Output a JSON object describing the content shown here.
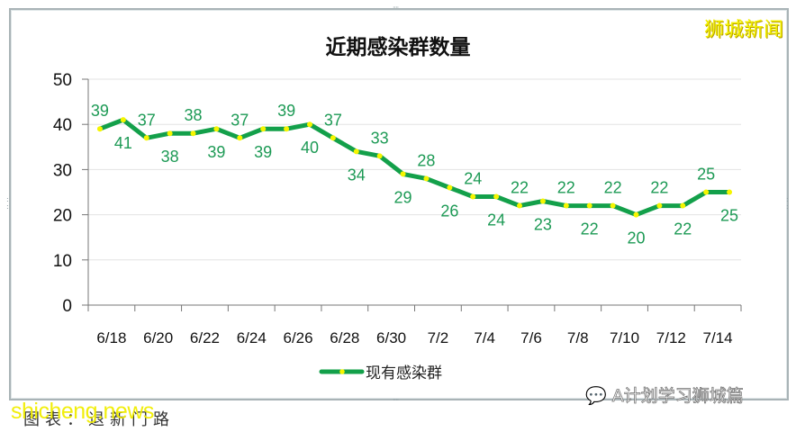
{
  "chart_data": {
    "type": "line",
    "title": "近期感染群数量",
    "xlabel": "",
    "ylabel": "",
    "ylim": [
      0,
      50
    ],
    "yticks": [
      0,
      10,
      20,
      30,
      40,
      50
    ],
    "grid": true,
    "legend_position": "bottom",
    "x": [
      "6/18",
      "6/19",
      "6/20",
      "6/21",
      "6/22",
      "6/23",
      "6/24",
      "6/25",
      "6/26",
      "6/27",
      "6/28",
      "6/29",
      "6/30",
      "7/1",
      "7/2",
      "7/3",
      "7/4",
      "7/5",
      "7/6",
      "7/7",
      "7/8",
      "7/9",
      "7/10",
      "7/11",
      "7/12",
      "7/13",
      "7/14",
      "7/15"
    ],
    "xtick_labels": [
      "6/18",
      "6/20",
      "6/22",
      "6/24",
      "6/26",
      "6/28",
      "6/30",
      "7/2",
      "7/4",
      "7/6",
      "7/8",
      "7/10",
      "7/12",
      "7/14"
    ],
    "series": [
      {
        "name": "现有感染群",
        "color": "#13a04a",
        "marker_color": "#f5f500",
        "values": [
          39,
          41,
          37,
          38,
          38,
          39,
          37,
          39,
          39,
          40,
          37,
          34,
          33,
          29,
          28,
          26,
          24,
          24,
          22,
          23,
          22,
          22,
          22,
          20,
          22,
          22,
          25,
          25
        ]
      }
    ]
  },
  "header": {
    "title": "近期感染群数量"
  },
  "legend": {
    "label": "现有感染群"
  },
  "brand": {
    "text": "狮城新闻"
  },
  "caption": {
    "text": "图表：退新门路"
  },
  "watermark": {
    "text": "shicheng.news"
  },
  "wechat": {
    "text": "A计划学习狮城篇"
  }
}
